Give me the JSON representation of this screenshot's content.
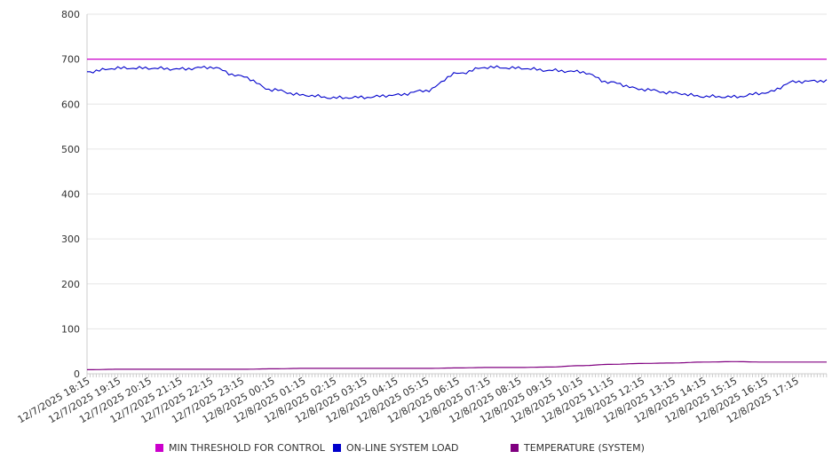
{
  "chart_data": {
    "type": "line",
    "title": "",
    "xlabel": "",
    "ylabel": "",
    "ylim": [
      0,
      800
    ],
    "yticks": [
      0,
      100,
      200,
      300,
      400,
      500,
      600,
      700,
      800
    ],
    "grid": true,
    "legend_position": "bottom",
    "x_tick_labels": [
      "12/7/2025 18:15",
      "12/7/2025 19:15",
      "12/7/2025 20:15",
      "12/7/2025 21:15",
      "12/7/2025 22:15",
      "12/7/2025 23:15",
      "12/8/2025 00:15",
      "12/8/2025 01:15",
      "12/8/2025 02:15",
      "12/8/2025 03:15",
      "12/8/2025 04:15",
      "12/8/2025 05:15",
      "12/8/2025 06:15",
      "12/8/2025 07:15",
      "12/8/2025 08:15",
      "12/8/2025 09:15",
      "12/8/2025 10:15",
      "12/8/2025 11:15",
      "12/8/2025 12:15",
      "12/8/2025 13:15",
      "12/8/2025 14:15",
      "12/8/2025 15:15",
      "12/8/2025 16:15",
      "12/8/2025 17:15"
    ],
    "x": [
      "12/7/2025 18:15",
      "12/7/2025 19:15",
      "12/7/2025 20:15",
      "12/7/2025 21:15",
      "12/7/2025 22:15",
      "12/7/2025 23:15",
      "12/8/2025 00:15",
      "12/8/2025 01:15",
      "12/8/2025 02:15",
      "12/8/2025 03:15",
      "12/8/2025 04:15",
      "12/8/2025 05:15",
      "12/8/2025 06:15",
      "12/8/2025 07:15",
      "12/8/2025 08:15",
      "12/8/2025 09:15",
      "12/8/2025 10:15",
      "12/8/2025 11:15",
      "12/8/2025 12:15",
      "12/8/2025 13:15",
      "12/8/2025 14:15",
      "12/8/2025 15:15",
      "12/8/2025 16:15",
      "12/8/2025 17:15",
      "12/8/2025 18:00"
    ],
    "series": [
      {
        "name": "MIN THRESHOLD FOR CONTROL",
        "color": "#cc00cc",
        "values": [
          700,
          700,
          700,
          700,
          700,
          700,
          700,
          700,
          700,
          700,
          700,
          700,
          700,
          700,
          700,
          700,
          700,
          700,
          700,
          700,
          700,
          700,
          700,
          700,
          700
        ]
      },
      {
        "name": "ON-LINE SYSTEM LOAD",
        "color": "#0000cc",
        "values": [
          672,
          680,
          680,
          678,
          682,
          662,
          632,
          620,
          614,
          615,
          620,
          630,
          668,
          682,
          680,
          675,
          672,
          648,
          633,
          625,
          617,
          616,
          625,
          650,
          652
        ]
      },
      {
        "name": "TEMPERATURE (SYSTEM)",
        "color": "#800080",
        "values": [
          9,
          10,
          10,
          10,
          10,
          10,
          11,
          12,
          12,
          12,
          12,
          12,
          13,
          14,
          14,
          15,
          18,
          21,
          23,
          24,
          26,
          27,
          26,
          26,
          26
        ]
      }
    ]
  }
}
